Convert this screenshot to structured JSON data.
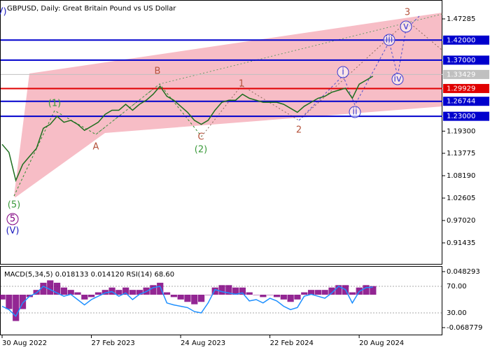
{
  "chart_data": [
    {
      "type": "line",
      "title": "GBPUSD, Daily:  Great Britain Pound vs US Dollar",
      "categories": [
        "30 Aug 2022",
        null,
        null,
        null,
        null,
        null,
        null,
        null,
        null,
        null,
        null,
        null,
        null,
        "27 Feb 2023",
        null,
        null,
        null,
        null,
        null,
        null,
        null,
        null,
        null,
        null,
        null,
        null,
        "24 Aug 2023",
        null,
        null,
        null,
        null,
        null,
        null,
        null,
        null,
        null,
        null,
        null,
        null,
        "22 Feb 2024",
        null,
        null,
        null,
        null,
        null,
        null,
        null,
        null,
        null,
        null,
        null,
        null,
        "20 Aug 2024",
        null,
        null
      ],
      "series": [
        {
          "color": "#1e6e1e",
          "values": [
            1.16,
            1.14,
            1.07,
            1.11,
            1.13,
            1.15,
            1.2,
            1.21,
            1.23,
            1.215,
            1.22,
            1.21,
            1.195,
            1.205,
            1.215,
            1.235,
            1.245,
            1.245,
            1.26,
            1.245,
            1.26,
            1.27,
            1.285,
            1.305,
            1.28,
            1.27,
            1.255,
            1.24,
            1.22,
            1.21,
            1.22,
            1.245,
            1.265,
            1.27,
            1.27,
            1.285,
            1.275,
            1.27,
            1.265,
            1.265,
            1.265,
            1.26,
            1.25,
            1.24,
            1.255,
            1.265,
            1.275,
            1.28,
            1.29,
            1.295,
            1.3,
            1.275,
            1.31,
            1.32,
            1.33
          ]
        }
      ],
      "ylim": [
        0.8602,
        1.52
      ],
      "yticks": [
        1.47285,
        {
          "value": 1.193,
          "label": "1.19300"
        },
        1.13775,
        {
          "value": 1.0819,
          "label": "1.08190"
        },
        1.02605,
        {
          "value": 0.9702,
          "label": "0.97020"
        },
        0.91435
      ],
      "levels": [
        {
          "value": 1.42,
          "label": "1.42000",
          "color": "#0000cd"
        },
        {
          "value": 1.37,
          "label": "1.37000",
          "color": "#0000cd"
        },
        {
          "value": 1.33429,
          "label": "1.33429",
          "color": "#c0c0c0"
        },
        {
          "value": 1.29929,
          "label": "1.29929",
          "color": "#e00000"
        },
        {
          "value": 1.26744,
          "label": "1.26744",
          "color": "#0000cd"
        },
        {
          "value": 1.23,
          "label": "1.23000",
          "color": "#0000cd"
        }
      ],
      "annotations": [
        {
          "text": "(1)",
          "color": "#3a9a3a"
        },
        {
          "text": "A",
          "color": "#b5533c"
        },
        {
          "text": "B",
          "color": "#b5533c"
        },
        {
          "text": "C",
          "color": "#b5533c"
        },
        {
          "text": "(2)",
          "color": "#3a9a3a"
        },
        {
          "text": "1",
          "color": "#b5533c"
        },
        {
          "text": "2",
          "color": "#b5533c"
        },
        {
          "text": "3",
          "color": "#b5533c"
        },
        {
          "text": "i",
          "color": "#3a3ad0",
          "circled": true
        },
        {
          "text": "ii",
          "color": "#3a3ad0",
          "circled": true
        },
        {
          "text": "iii",
          "color": "#3a3ad0",
          "circled": true
        },
        {
          "text": "iv",
          "color": "#3a3ad0",
          "circled": true
        },
        {
          "text": "v",
          "color": "#3a3ad0",
          "circled": true
        },
        {
          "text": "(5)",
          "color": "#3a9a3a"
        },
        {
          "text": "5",
          "color": "#800080",
          "circled": true
        },
        {
          "text": "(V)",
          "color": "#2020c0"
        },
        {
          "text": "(V)",
          "color": "#2020c0"
        }
      ]
    },
    {
      "type": "bar",
      "title": "MACD(5,34,5) 0.018133 0.014120 RSI(14) 68.60",
      "series": [
        {
          "color": "#800080",
          "values": [
            -0.01,
            -0.03,
            -0.055,
            -0.03,
            -0.005,
            0.01,
            0.025,
            0.03,
            0.025,
            0.015,
            0.01,
            0.005,
            -0.01,
            -0.005,
            0.005,
            0.01,
            0.015,
            0.01,
            0.015,
            0.01,
            0.01,
            0.015,
            0.02,
            0.025,
            0.005,
            -0.005,
            -0.01,
            -0.015,
            -0.02,
            -0.015,
            0.0,
            0.015,
            0.02,
            0.02,
            0.015,
            0.015,
            0.005,
            0.0,
            -0.005,
            0.0,
            -0.005,
            -0.01,
            -0.015,
            -0.01,
            0.005,
            0.01,
            0.01,
            0.01,
            0.015,
            0.02,
            0.02,
            0.005,
            0.015,
            0.02,
            0.018
          ]
        },
        {
          "color": "#1e90ff",
          "axis": "y2",
          "values": [
            40,
            35,
            25,
            45,
            55,
            60,
            70,
            65,
            60,
            55,
            58,
            50,
            42,
            50,
            55,
            60,
            62,
            55,
            60,
            50,
            58,
            62,
            68,
            70,
            45,
            42,
            40,
            38,
            32,
            30,
            45,
            65,
            62,
            60,
            58,
            60,
            48,
            50,
            45,
            52,
            48,
            40,
            35,
            38,
            55,
            58,
            55,
            52,
            60,
            70,
            65,
            45,
            62,
            68,
            68.6
          ]
        }
      ],
      "ylim": [
        -0.0834,
        0.06
      ],
      "yticks": [
        0.048293,
        -0.068779
      ],
      "y2lim": [
        -2.6,
        100.5
      ],
      "y2ticks": [
        {
          "value": 70,
          "label": "70.00"
        },
        {
          "value": 30,
          "label": "30.00"
        }
      ]
    }
  ]
}
